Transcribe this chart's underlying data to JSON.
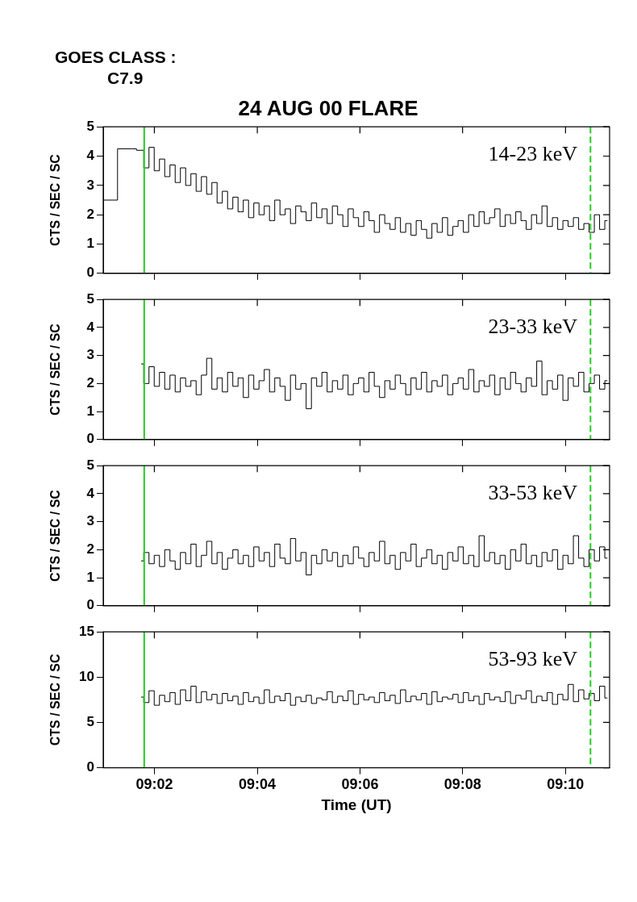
{
  "chart_data": [
    {
      "type": "step",
      "title": "24 AUG 00 FLARE",
      "ylabel": "CTS / SEC / SC",
      "annotations": [
        "GOES CLASS :",
        "C7.9",
        "14-23 keV"
      ],
      "tick_labels": "y",
      "xlim": [
        9.0167,
        9.181
      ],
      "ylim": [
        0,
        5
      ],
      "yticks": [
        0,
        1,
        2,
        3,
        4,
        5
      ],
      "xticks": [
        {
          "value": 9.0333,
          "label": null
        },
        {
          "value": 9.0667,
          "label": null
        },
        {
          "value": 9.1,
          "label": null
        },
        {
          "value": 9.1333,
          "label": null
        },
        {
          "value": 9.1667,
          "label": null
        }
      ],
      "ref_lines": [
        {
          "axis": "x",
          "value": 9.03,
          "color": "#22cc22"
        },
        {
          "axis": "x",
          "value": 9.1748,
          "color": "#22cc22",
          "line_style": "dashed"
        }
      ],
      "series": [
        {
          "color": "#000000",
          "x": [
            9.0167,
            9.026,
            9.029,
            9.0307,
            9.0324,
            9.0341,
            9.0358,
            9.0375,
            9.0392,
            9.0409,
            9.0426,
            9.0443,
            9.046,
            9.0477,
            9.0494,
            9.0511,
            9.0528,
            9.0545,
            9.0562,
            9.0579,
            9.0596,
            9.0613,
            9.063,
            9.0647,
            9.0664,
            9.0681,
            9.0698,
            9.0715,
            9.0732,
            9.0749,
            9.0766,
            9.0783,
            9.08,
            9.0817,
            9.0834,
            9.0851,
            9.0868,
            9.0885,
            9.0902,
            9.0919,
            9.0936,
            9.0953,
            9.097,
            9.0987,
            9.1004,
            9.1021,
            9.1038,
            9.1055,
            9.1072,
            9.1089,
            9.1106,
            9.1123,
            9.114,
            9.1157,
            9.1174,
            9.1191,
            9.1208,
            9.1225,
            9.1242,
            9.1259,
            9.1276,
            9.1293,
            9.131,
            9.1327,
            9.1344,
            9.1361,
            9.1378,
            9.1395,
            9.1412,
            9.1429,
            9.1446,
            9.1463,
            9.148,
            9.1497,
            9.1514,
            9.1531,
            9.1548,
            9.1565,
            9.1582,
            9.1599,
            9.1616,
            9.1633,
            9.165,
            9.1667,
            9.1684,
            9.1701,
            9.1718,
            9.1735,
            9.1752,
            9.1769,
            9.1786,
            9.1803
          ],
          "values": [
            2.5,
            4.25,
            4.2,
            3.6,
            4.3,
            3.5,
            3.9,
            3.3,
            3.7,
            3.1,
            3.6,
            3.0,
            3.4,
            2.8,
            3.3,
            2.7,
            3.1,
            2.4,
            2.8,
            2.2,
            2.6,
            2.1,
            2.5,
            1.9,
            2.4,
            2.0,
            2.3,
            1.8,
            2.5,
            2.0,
            2.2,
            1.7,
            2.3,
            2.1,
            1.8,
            2.4,
            1.9,
            2.2,
            1.7,
            2.3,
            2.0,
            1.6,
            2.2,
            1.9,
            1.6,
            2.1,
            1.8,
            1.4,
            2.0,
            1.7,
            1.5,
            1.9,
            1.4,
            1.7,
            1.3,
            1.8,
            1.5,
            1.2,
            1.7,
            1.4,
            1.9,
            1.3,
            1.6,
            1.8,
            1.4,
            2.0,
            1.6,
            2.1,
            1.7,
            1.9,
            2.2,
            1.6,
            2.0,
            1.7,
            2.1,
            1.8,
            1.5,
            2.0,
            1.7,
            2.3,
            1.6,
            1.9,
            1.5,
            1.8,
            1.6,
            1.9,
            1.5,
            1.7,
            1.4,
            2.0,
            1.5,
            1.8
          ]
        }
      ]
    },
    {
      "type": "step",
      "ylabel": "CTS / SEC / SC",
      "annotations": [
        "23-33 keV"
      ],
      "tick_labels": "y",
      "xlim": [
        9.0167,
        9.181
      ],
      "ylim": [
        0,
        5
      ],
      "yticks": [
        0,
        1,
        2,
        3,
        4,
        5
      ],
      "xticks": [
        {
          "value": 9.0333,
          "label": null
        },
        {
          "value": 9.0667,
          "label": null
        },
        {
          "value": 9.1,
          "label": null
        },
        {
          "value": 9.1333,
          "label": null
        },
        {
          "value": 9.1667,
          "label": null
        }
      ],
      "ref_lines": [
        {
          "axis": "x",
          "value": 9.03,
          "color": "#22cc22"
        },
        {
          "axis": "x",
          "value": 9.1748,
          "color": "#22cc22",
          "line_style": "dashed"
        }
      ],
      "series": [
        {
          "color": "#000000",
          "x": [
            9.029,
            9.0307,
            9.0324,
            9.0341,
            9.0358,
            9.0375,
            9.0392,
            9.0409,
            9.0426,
            9.0443,
            9.046,
            9.0477,
            9.0494,
            9.0511,
            9.0528,
            9.0545,
            9.0562,
            9.0579,
            9.0596,
            9.0613,
            9.063,
            9.0647,
            9.0664,
            9.0681,
            9.0698,
            9.0715,
            9.0732,
            9.0749,
            9.0766,
            9.0783,
            9.08,
            9.0817,
            9.0834,
            9.0851,
            9.0868,
            9.0885,
            9.0902,
            9.0919,
            9.0936,
            9.0953,
            9.097,
            9.0987,
            9.1004,
            9.1021,
            9.1038,
            9.1055,
            9.1072,
            9.1089,
            9.1106,
            9.1123,
            9.114,
            9.1157,
            9.1174,
            9.1191,
            9.1208,
            9.1225,
            9.1242,
            9.1259,
            9.1276,
            9.1293,
            9.131,
            9.1327,
            9.1344,
            9.1361,
            9.1378,
            9.1395,
            9.1412,
            9.1429,
            9.1446,
            9.1463,
            9.148,
            9.1497,
            9.1514,
            9.1531,
            9.1548,
            9.1565,
            9.1582,
            9.1599,
            9.1616,
            9.1633,
            9.165,
            9.1667,
            9.1684,
            9.1701,
            9.1718,
            9.1735,
            9.1752,
            9.1769,
            9.1786,
            9.1803
          ],
          "values": [
            2.7,
            2.0,
            2.6,
            1.9,
            2.4,
            1.8,
            2.3,
            1.7,
            2.2,
            1.9,
            2.1,
            1.6,
            2.3,
            2.9,
            1.8,
            2.2,
            1.7,
            2.4,
            1.9,
            2.2,
            1.5,
            2.3,
            1.8,
            2.1,
            2.5,
            1.7,
            2.2,
            1.9,
            1.4,
            2.3,
            1.8,
            2.0,
            1.1,
            2.2,
            1.9,
            2.4,
            1.7,
            2.1,
            1.8,
            2.3,
            1.6,
            2.0,
            2.2,
            1.7,
            2.4,
            1.9,
            1.5,
            2.1,
            1.8,
            2.3,
            2.0,
            1.6,
            2.2,
            1.8,
            2.4,
            1.7,
            2.1,
            1.9,
            2.3,
            1.6,
            2.0,
            2.2,
            1.8,
            2.5,
            1.7,
            2.1,
            1.9,
            2.3,
            1.6,
            2.2,
            1.8,
            2.4,
            2.0,
            1.7,
            2.2,
            1.9,
            2.8,
            1.6,
            2.1,
            1.8,
            2.3,
            1.4,
            2.2,
            1.9,
            2.4,
            1.7,
            2.0,
            2.3,
            1.8,
            2.1
          ]
        }
      ]
    },
    {
      "type": "step",
      "ylabel": "CTS / SEC / SC",
      "annotations": [
        "33-53 keV"
      ],
      "tick_labels": "y",
      "xlim": [
        9.0167,
        9.181
      ],
      "ylim": [
        0,
        5
      ],
      "yticks": [
        0,
        1,
        2,
        3,
        4,
        5
      ],
      "xticks": [
        {
          "value": 9.0333,
          "label": null
        },
        {
          "value": 9.0667,
          "label": null
        },
        {
          "value": 9.1,
          "label": null
        },
        {
          "value": 9.1333,
          "label": null
        },
        {
          "value": 9.1667,
          "label": null
        }
      ],
      "ref_lines": [
        {
          "axis": "x",
          "value": 9.03,
          "color": "#22cc22"
        },
        {
          "axis": "x",
          "value": 9.1748,
          "color": "#22cc22",
          "line_style": "dashed"
        }
      ],
      "series": [
        {
          "color": "#000000",
          "x": [
            9.029,
            9.0307,
            9.0324,
            9.0341,
            9.0358,
            9.0375,
            9.0392,
            9.0409,
            9.0426,
            9.0443,
            9.046,
            9.0477,
            9.0494,
            9.0511,
            9.0528,
            9.0545,
            9.0562,
            9.0579,
            9.0596,
            9.0613,
            9.063,
            9.0647,
            9.0664,
            9.0681,
            9.0698,
            9.0715,
            9.0732,
            9.0749,
            9.0766,
            9.0783,
            9.08,
            9.0817,
            9.0834,
            9.0851,
            9.0868,
            9.0885,
            9.0902,
            9.0919,
            9.0936,
            9.0953,
            9.097,
            9.0987,
            9.1004,
            9.1021,
            9.1038,
            9.1055,
            9.1072,
            9.1089,
            9.1106,
            9.1123,
            9.114,
            9.1157,
            9.1174,
            9.1191,
            9.1208,
            9.1225,
            9.1242,
            9.1259,
            9.1276,
            9.1293,
            9.131,
            9.1327,
            9.1344,
            9.1361,
            9.1378,
            9.1395,
            9.1412,
            9.1429,
            9.1446,
            9.1463,
            9.148,
            9.1497,
            9.1514,
            9.1531,
            9.1548,
            9.1565,
            9.1582,
            9.1599,
            9.1616,
            9.1633,
            9.165,
            9.1667,
            9.1684,
            9.1701,
            9.1718,
            9.1735,
            9.1752,
            9.1769,
            9.1786,
            9.1803
          ],
          "values": [
            1.6,
            1.9,
            1.5,
            1.8,
            1.4,
            2.0,
            1.6,
            1.3,
            1.9,
            1.5,
            2.2,
            1.4,
            1.8,
            2.3,
            1.5,
            1.9,
            1.3,
            1.7,
            2.0,
            1.5,
            1.8,
            1.4,
            2.1,
            1.6,
            1.9,
            1.4,
            2.2,
            1.7,
            1.5,
            2.4,
            1.6,
            1.9,
            1.1,
            1.8,
            1.5,
            2.0,
            1.6,
            1.9,
            1.4,
            1.8,
            1.5,
            2.1,
            1.7,
            1.4,
            1.9,
            1.6,
            2.3,
            1.5,
            1.8,
            1.3,
            1.9,
            1.6,
            2.2,
            1.4,
            1.7,
            2.0,
            1.5,
            1.8,
            1.3,
            1.9,
            1.6,
            2.1,
            1.5,
            1.8,
            1.4,
            2.5,
            1.6,
            1.9,
            1.5,
            1.8,
            1.3,
            2.0,
            1.6,
            2.2,
            1.5,
            1.8,
            1.4,
            1.9,
            1.6,
            2.0,
            1.3,
            1.8,
            1.5,
            2.5,
            1.7,
            1.4,
            2.0,
            1.6,
            2.1,
            1.7
          ]
        }
      ]
    },
    {
      "type": "step",
      "ylabel": "CTS / SEC / SC",
      "xlabel": "Time (UT)",
      "annotations": [
        "53-93 keV"
      ],
      "xlim": [
        9.0167,
        9.181
      ],
      "ylim": [
        0,
        15
      ],
      "yticks": [
        0,
        5,
        10,
        15
      ],
      "xticks": [
        {
          "value": 9.0333,
          "label": "09:02"
        },
        {
          "value": 9.0667,
          "label": "09:04"
        },
        {
          "value": 9.1,
          "label": "09:06"
        },
        {
          "value": 9.1333,
          "label": "09:08"
        },
        {
          "value": 9.1667,
          "label": "09:10"
        }
      ],
      "ref_lines": [
        {
          "axis": "x",
          "value": 9.03,
          "color": "#22cc22"
        },
        {
          "axis": "x",
          "value": 9.1748,
          "color": "#22cc22",
          "line_style": "dashed"
        }
      ],
      "series": [
        {
          "color": "#000000",
          "x": [
            9.029,
            9.0307,
            9.0324,
            9.0341,
            9.0358,
            9.0375,
            9.0392,
            9.0409,
            9.0426,
            9.0443,
            9.046,
            9.0477,
            9.0494,
            9.0511,
            9.0528,
            9.0545,
            9.0562,
            9.0579,
            9.0596,
            9.0613,
            9.063,
            9.0647,
            9.0664,
            9.0681,
            9.0698,
            9.0715,
            9.0732,
            9.0749,
            9.0766,
            9.0783,
            9.08,
            9.0817,
            9.0834,
            9.0851,
            9.0868,
            9.0885,
            9.0902,
            9.0919,
            9.0936,
            9.0953,
            9.097,
            9.0987,
            9.1004,
            9.1021,
            9.1038,
            9.1055,
            9.1072,
            9.1089,
            9.1106,
            9.1123,
            9.114,
            9.1157,
            9.1174,
            9.1191,
            9.1208,
            9.1225,
            9.1242,
            9.1259,
            9.1276,
            9.1293,
            9.131,
            9.1327,
            9.1344,
            9.1361,
            9.1378,
            9.1395,
            9.1412,
            9.1429,
            9.1446,
            9.1463,
            9.148,
            9.1497,
            9.1514,
            9.1531,
            9.1548,
            9.1565,
            9.1582,
            9.1599,
            9.1616,
            9.1633,
            9.165,
            9.1667,
            9.1684,
            9.1701,
            9.1718,
            9.1735,
            9.1752,
            9.1769,
            9.1786,
            9.1803
          ],
          "values": [
            7.8,
            7.2,
            8.5,
            6.9,
            8.0,
            7.3,
            8.3,
            7.0,
            8.6,
            7.4,
            9.0,
            7.2,
            8.4,
            7.5,
            8.1,
            7.1,
            8.2,
            7.4,
            7.9,
            7.0,
            8.3,
            7.3,
            7.8,
            7.1,
            8.6,
            7.2,
            7.9,
            7.4,
            8.2,
            6.9,
            7.8,
            7.3,
            8.0,
            7.1,
            7.7,
            7.5,
            8.4,
            7.2,
            7.9,
            7.4,
            8.5,
            7.0,
            8.1,
            7.5,
            7.8,
            7.2,
            8.3,
            7.4,
            8.0,
            7.1,
            8.6,
            7.3,
            7.9,
            7.5,
            8.2,
            7.0,
            8.4,
            7.3,
            7.8,
            7.6,
            8.1,
            7.2,
            8.3,
            7.4,
            7.9,
            7.0,
            8.2,
            7.5,
            7.8,
            7.3,
            8.4,
            7.1,
            8.0,
            7.6,
            8.5,
            7.2,
            7.9,
            7.4,
            8.3,
            7.0,
            8.1,
            7.5,
            9.2,
            7.3,
            8.6,
            7.6,
            8.2,
            7.4,
            9.0,
            7.7
          ]
        }
      ]
    }
  ]
}
